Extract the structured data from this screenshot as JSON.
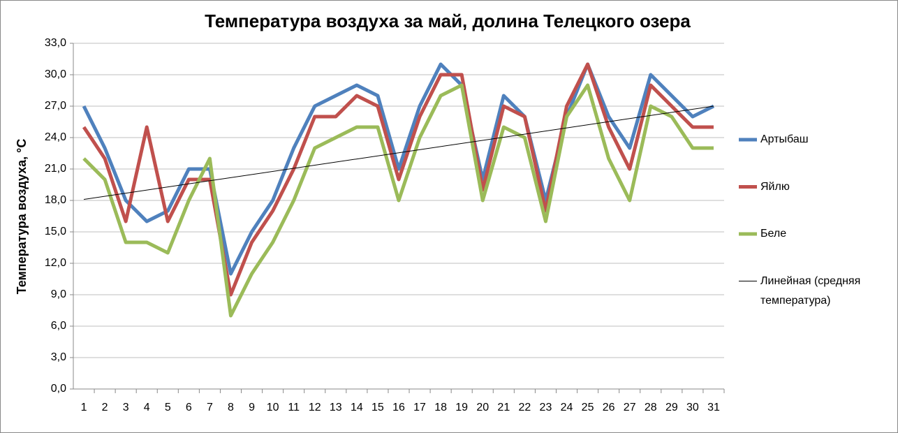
{
  "chart_data": {
    "type": "line",
    "title": "Температура воздуха за май, долина Телецкого озера",
    "y_label": "Температура воздуха, °С",
    "categories": [
      "1",
      "2",
      "3",
      "4",
      "5",
      "6",
      "7",
      "8",
      "9",
      "10",
      "11",
      "12",
      "13",
      "14",
      "15",
      "16",
      "17",
      "18",
      "19",
      "20",
      "21",
      "22",
      "23",
      "24",
      "25",
      "26",
      "27",
      "28",
      "29",
      "30",
      "31"
    ],
    "series": [
      {
        "name": "Артыбаш",
        "color": "#4f81bd",
        "values": [
          27,
          23,
          18,
          16,
          17,
          21,
          21,
          11,
          15,
          18,
          23,
          27,
          28,
          29,
          28,
          21,
          27,
          31,
          29,
          20,
          28,
          26,
          18,
          26,
          31,
          26,
          23,
          30,
          28,
          26,
          27
        ]
      },
      {
        "name": "Яйлю",
        "color": "#c0504d",
        "values": [
          25,
          22,
          16,
          25,
          16,
          20,
          20,
          9,
          14,
          17,
          21,
          26,
          26,
          28,
          27,
          20,
          26,
          30,
          30,
          19,
          27,
          26,
          17,
          27,
          31,
          25,
          21,
          29,
          27,
          25,
          25
        ]
      },
      {
        "name": "Беле",
        "color": "#9bbb59",
        "values": [
          22,
          20,
          14,
          14,
          13,
          18,
          22,
          7,
          11,
          14,
          18,
          23,
          24,
          25,
          25,
          18,
          24,
          28,
          29,
          18,
          25,
          24,
          16,
          26,
          29,
          22,
          18,
          27,
          26,
          23,
          23
        ]
      }
    ],
    "trendline": {
      "name": "Линейная  (средняя температура)",
      "color": "#000000",
      "values": [
        18.1,
        27.0
      ]
    },
    "ylim": [
      0,
      33
    ],
    "yticks": [
      {
        "value": 0,
        "label": "0,0"
      },
      {
        "value": 3,
        "label": "3,0"
      },
      {
        "value": 6,
        "label": "6,0"
      },
      {
        "value": 9,
        "label": "9,0"
      },
      {
        "value": 12,
        "label": "12,0"
      },
      {
        "value": 15,
        "label": "15,0"
      },
      {
        "value": 18,
        "label": "18,0"
      },
      {
        "value": 21,
        "label": "21,0"
      },
      {
        "value": 24,
        "label": "24,0"
      },
      {
        "value": 27,
        "label": "27,0"
      },
      {
        "value": 30,
        "label": "30,0"
      },
      {
        "value": 33,
        "label": "33,0"
      }
    ],
    "grid": true,
    "legend": "right"
  }
}
